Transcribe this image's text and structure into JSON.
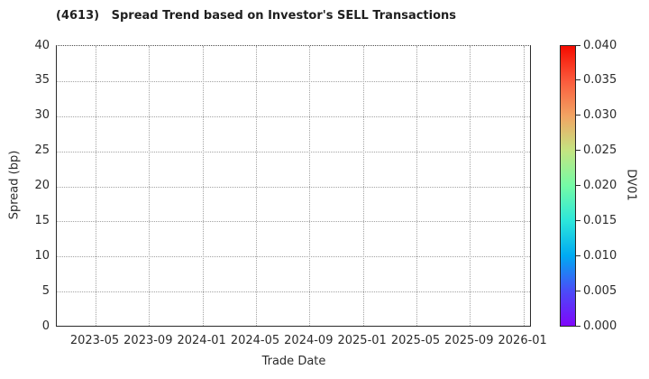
{
  "chart_data": {
    "type": "scatter",
    "title": "(4613)   Spread Trend based on Investor's SELL Transactions",
    "xlabel": "Trade Date",
    "ylabel": "Spread (bp)",
    "x_tick_labels": [
      "2023-05",
      "2023-09",
      "2024-01",
      "2024-05",
      "2024-09",
      "2025-01",
      "2025-05",
      "2025-09",
      "2026-01"
    ],
    "y_ticks": [
      0,
      5,
      10,
      15,
      20,
      25,
      30,
      35,
      40
    ],
    "ylim": [
      0,
      40
    ],
    "grid": true,
    "grid_style": "dotted",
    "points": [],
    "colorbar": {
      "label": "DV01",
      "tick_labels": [
        "0.000",
        "0.005",
        "0.010",
        "0.015",
        "0.020",
        "0.025",
        "0.030",
        "0.035",
        "0.040"
      ],
      "vmin": 0.0,
      "vmax": 0.04,
      "colormap": "rainbow",
      "gradient_stops_bottom_to_top": [
        "#7f06fb",
        "#4a4cf8",
        "#00aaf2",
        "#2ce6db",
        "#74fba6",
        "#c3e581",
        "#f2a463",
        "#fb5b3c",
        "#f60c00"
      ]
    },
    "colors": {
      "background": "#ffffff",
      "text": "#262626",
      "spine": "#2b2b2b",
      "gridline": "#a3a3a3"
    }
  }
}
